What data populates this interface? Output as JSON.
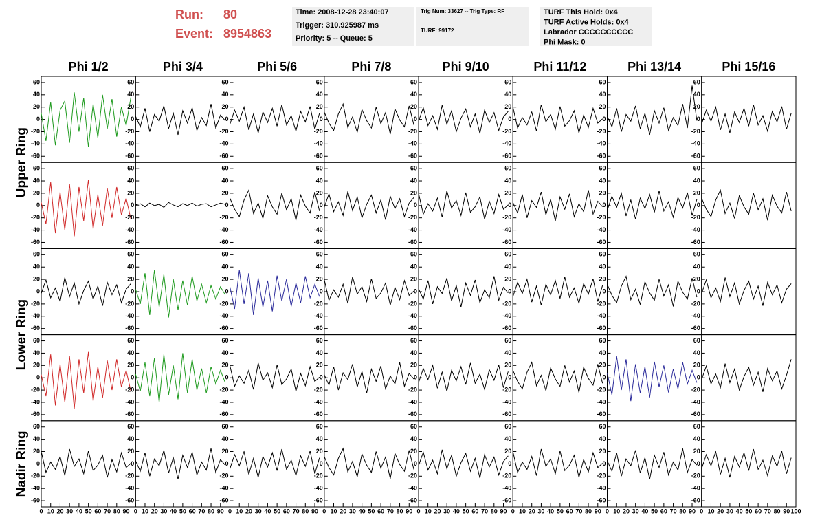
{
  "header": {
    "run_label": "Run:",
    "run": "80",
    "event_label": "Event:",
    "event": "8954863"
  },
  "info_boxes": [
    [
      "Time: 2008-12-28 23:40:07",
      "Trigger: 310.925987 ms",
      "Priority: 5 -- Queue: 5"
    ],
    [
      "Trig Num: 33627 -- Trig Type: RF",
      "TURF: 99172"
    ],
    [
      "TURF This Hold: 0x4",
      "TURF Active Holds: 0x4",
      "Labrador CCCCCCCCCC",
      "Phi Mask: 0"
    ]
  ],
  "columns": [
    "Phi 1/2",
    "Phi 3/4",
    "Phi 5/6",
    "Phi 7/8",
    "Phi 9/10",
    "Phi 11/12",
    "Phi 13/14",
    "Phi 15/16"
  ],
  "ring_labels": [
    "Upper Ring",
    "Lower Ring",
    "Nadir Ring"
  ],
  "axes": {
    "xlim": [
      0,
      100
    ],
    "xticks": [
      0,
      10,
      20,
      30,
      40,
      50,
      60,
      70,
      80,
      90,
      100
    ],
    "ylim": [
      -70,
      70
    ],
    "yticks": [
      -60,
      -40,
      -20,
      0,
      20,
      40,
      60
    ]
  },
  "x": [
    0,
    5,
    10,
    15,
    20,
    25,
    30,
    35,
    40,
    45,
    50,
    55,
    60,
    65,
    70,
    75,
    80,
    85,
    90,
    95
  ],
  "panels": [
    [
      {
        "color": "#1e9a1e",
        "values": [
          10,
          -35,
          28,
          -42,
          15,
          30,
          -38,
          44,
          -20,
          35,
          -45,
          25,
          -30,
          40,
          -15,
          33,
          -28,
          20,
          -10,
          36
        ]
      },
      {
        "color": "#000000",
        "values": [
          5,
          -12,
          18,
          -20,
          8,
          -3,
          22,
          -15,
          10,
          -25,
          14,
          -6,
          19,
          -18,
          3,
          -10,
          25,
          -14,
          7,
          -2
        ]
      },
      {
        "color": "#000000",
        "values": [
          -8,
          15,
          -3,
          20,
          -17,
          9,
          -22,
          12,
          -5,
          18,
          -11,
          24,
          -9,
          6,
          -19,
          13,
          -4,
          21,
          -16,
          10
        ]
      },
      {
        "color": "#000000",
        "values": [
          12,
          -6,
          -18,
          9,
          25,
          -13,
          4,
          -21,
          16,
          -2,
          -14,
          20,
          -7,
          11,
          -24,
          17,
          -1,
          -12,
          22,
          -9
        ]
      },
      {
        "color": "#000000",
        "values": [
          -3,
          19,
          -10,
          6,
          -16,
          23,
          -8,
          14,
          -20,
          2,
          17,
          -12,
          9,
          -23,
          15,
          -5,
          11,
          -18,
          4,
          13
        ]
      },
      {
        "color": "#000000",
        "values": [
          20,
          -14,
          3,
          -9,
          12,
          -19,
          24,
          -4,
          8,
          -16,
          21,
          -11,
          -2,
          14,
          -22,
          7,
          -13,
          18,
          -6,
          1
        ]
      },
      {
        "color": "#000000",
        "values": [
          5,
          -12,
          18,
          -20,
          8,
          -3,
          22,
          -15,
          10,
          -25,
          14,
          -6,
          19,
          -18,
          3,
          -10,
          25,
          -14,
          55,
          -2
        ]
      },
      {
        "color": "#000000",
        "values": [
          -8,
          15,
          -3,
          20,
          -17,
          9,
          -22,
          12,
          -5,
          18,
          -11,
          24,
          -9,
          6,
          -19,
          13,
          -4,
          21,
          -16,
          10
        ]
      }
    ],
    [
      {
        "color": "#d02828",
        "values": [
          5,
          -30,
          38,
          -45,
          22,
          -40,
          35,
          -50,
          30,
          -25,
          42,
          -38,
          18,
          -33,
          28,
          -20,
          30,
          -15,
          12,
          -22
        ]
      },
      {
        "color": "#000000",
        "values": [
          1,
          3,
          -2,
          4,
          0,
          2,
          -3,
          5,
          1,
          -2,
          3,
          0,
          4,
          -1,
          2,
          3,
          -2,
          1,
          4,
          2
        ]
      },
      {
        "color": "#000000",
        "values": [
          12,
          -6,
          -18,
          9,
          25,
          -13,
          4,
          -21,
          16,
          -2,
          -14,
          20,
          -7,
          11,
          -24,
          17,
          -1,
          -12,
          22,
          -9
        ]
      },
      {
        "color": "#000000",
        "values": [
          -3,
          19,
          -10,
          6,
          -16,
          23,
          -8,
          14,
          -20,
          2,
          17,
          -12,
          9,
          -23,
          15,
          -5,
          11,
          -18,
          4,
          13
        ]
      },
      {
        "color": "#000000",
        "values": [
          20,
          -14,
          3,
          -9,
          12,
          -19,
          24,
          -4,
          8,
          -16,
          21,
          -11,
          -2,
          14,
          -22,
          7,
          -13,
          18,
          -6,
          1
        ]
      },
      {
        "color": "#000000",
        "values": [
          5,
          -12,
          18,
          -20,
          8,
          -3,
          22,
          -15,
          10,
          -25,
          14,
          -6,
          19,
          -18,
          3,
          -10,
          25,
          -14,
          7,
          -2
        ]
      },
      {
        "color": "#000000",
        "values": [
          -8,
          15,
          -3,
          20,
          -17,
          9,
          -22,
          12,
          -5,
          18,
          -11,
          24,
          -9,
          6,
          -19,
          13,
          -4,
          21,
          -16,
          10
        ]
      },
      {
        "color": "#000000",
        "values": [
          12,
          -6,
          -18,
          9,
          25,
          -13,
          4,
          -21,
          16,
          -2,
          -14,
          20,
          -7,
          11,
          -24,
          17,
          -1,
          -12,
          22,
          -9
        ]
      }
    ],
    [
      {
        "color": "#000000",
        "values": [
          -3,
          19,
          -10,
          6,
          -16,
          23,
          -8,
          14,
          -20,
          2,
          17,
          -12,
          9,
          -23,
          15,
          -5,
          11,
          -18,
          4,
          13
        ]
      },
      {
        "color": "#1e9a1e",
        "values": [
          4,
          -20,
          30,
          -38,
          35,
          -25,
          28,
          -42,
          20,
          -30,
          18,
          -22,
          25,
          -15,
          12,
          -18,
          10,
          -12,
          8,
          -5
        ]
      },
      {
        "color": "#2a2a9a",
        "values": [
          8,
          -28,
          35,
          -20,
          30,
          -38,
          22,
          -25,
          18,
          -32,
          26,
          -15,
          20,
          -24,
          14,
          -18,
          25,
          -10,
          12,
          -8
        ]
      },
      {
        "color": "#000000",
        "values": [
          20,
          -14,
          3,
          -9,
          12,
          -19,
          24,
          -4,
          8,
          -16,
          21,
          -11,
          -2,
          14,
          -22,
          7,
          -13,
          18,
          -6,
          1
        ]
      },
      {
        "color": "#000000",
        "values": [
          5,
          -12,
          18,
          -20,
          8,
          -3,
          22,
          -15,
          10,
          -25,
          14,
          -6,
          19,
          -18,
          3,
          -10,
          25,
          -14,
          7,
          -2
        ]
      },
      {
        "color": "#000000",
        "values": [
          -8,
          15,
          -3,
          20,
          -17,
          9,
          -22,
          12,
          -5,
          18,
          -11,
          24,
          -9,
          6,
          -19,
          13,
          -4,
          21,
          -16,
          10
        ]
      },
      {
        "color": "#000000",
        "values": [
          12,
          -6,
          -18,
          9,
          25,
          -13,
          4,
          -21,
          16,
          -2,
          -14,
          20,
          -7,
          11,
          -24,
          17,
          -1,
          -12,
          22,
          -9
        ]
      },
      {
        "color": "#000000",
        "values": [
          -3,
          19,
          -10,
          6,
          -16,
          23,
          -8,
          14,
          -20,
          2,
          17,
          -12,
          9,
          -23,
          15,
          -5,
          11,
          -18,
          4,
          13
        ]
      }
    ],
    [
      {
        "color": "#d02828",
        "values": [
          5,
          -30,
          38,
          -45,
          22,
          -40,
          35,
          -50,
          30,
          -25,
          42,
          -38,
          18,
          -33,
          28,
          -20,
          30,
          -15,
          12,
          -22
        ]
      },
      {
        "color": "#1e9a1e",
        "values": [
          6,
          -22,
          25,
          -30,
          32,
          -40,
          38,
          -28,
          20,
          -35,
          40,
          -25,
          30,
          -20,
          15,
          -25,
          18,
          -10,
          12,
          -8
        ]
      },
      {
        "color": "#000000",
        "values": [
          20,
          -14,
          3,
          -9,
          12,
          -19,
          24,
          -4,
          8,
          -16,
          21,
          -11,
          -2,
          14,
          -22,
          7,
          -13,
          18,
          -6,
          1
        ]
      },
      {
        "color": "#000000",
        "values": [
          5,
          -12,
          18,
          -20,
          8,
          -3,
          22,
          -15,
          10,
          -25,
          14,
          -6,
          19,
          -18,
          3,
          -10,
          25,
          -14,
          7,
          -2
        ]
      },
      {
        "color": "#000000",
        "values": [
          -8,
          15,
          -3,
          20,
          -17,
          9,
          -22,
          12,
          -5,
          18,
          -11,
          24,
          -9,
          6,
          -19,
          13,
          -4,
          21,
          -16,
          10
        ]
      },
      {
        "color": "#000000",
        "values": [
          12,
          -6,
          -18,
          9,
          25,
          -13,
          4,
          -21,
          16,
          -2,
          -14,
          20,
          -7,
          11,
          -24,
          17,
          -1,
          -12,
          22,
          -9
        ]
      },
      {
        "color": "#2a2a9a",
        "values": [
          8,
          -28,
          35,
          -20,
          30,
          -38,
          22,
          -25,
          18,
          -32,
          26,
          -15,
          20,
          -24,
          14,
          -18,
          25,
          -10,
          12,
          -8
        ]
      },
      {
        "color": "#000000",
        "values": [
          -3,
          19,
          -10,
          6,
          -16,
          23,
          -8,
          14,
          -20,
          2,
          17,
          -12,
          9,
          -23,
          15,
          -5,
          11,
          -18,
          4,
          30
        ]
      }
    ],
    [
      {
        "color": "#000000",
        "values": [
          20,
          -14,
          3,
          -9,
          12,
          -19,
          24,
          -4,
          8,
          -16,
          21,
          -11,
          -2,
          14,
          -22,
          7,
          -13,
          18,
          -6,
          1
        ]
      },
      {
        "color": "#000000",
        "values": [
          5,
          -12,
          18,
          -20,
          8,
          -3,
          22,
          -15,
          10,
          -25,
          14,
          -6,
          19,
          -18,
          3,
          -10,
          25,
          -14,
          7,
          -2
        ]
      },
      {
        "color": "#000000",
        "values": [
          -8,
          15,
          -3,
          20,
          -17,
          9,
          -22,
          12,
          -5,
          18,
          -11,
          24,
          -9,
          6,
          -19,
          13,
          -4,
          21,
          -16,
          10
        ]
      },
      {
        "color": "#000000",
        "values": [
          12,
          -6,
          -18,
          9,
          25,
          -13,
          4,
          -21,
          16,
          -2,
          -14,
          20,
          -7,
          11,
          -24,
          17,
          -1,
          -12,
          22,
          -9
        ]
      },
      {
        "color": "#000000",
        "values": [
          -3,
          19,
          -10,
          6,
          -16,
          23,
          -8,
          14,
          -20,
          2,
          17,
          -12,
          9,
          -23,
          15,
          -5,
          11,
          -18,
          4,
          13
        ]
      },
      {
        "color": "#000000",
        "values": [
          20,
          -14,
          3,
          -9,
          12,
          -19,
          24,
          -4,
          8,
          -16,
          21,
          -11,
          -2,
          14,
          -22,
          7,
          -13,
          18,
          -6,
          1
        ]
      },
      {
        "color": "#000000",
        "values": [
          5,
          -12,
          18,
          -20,
          8,
          -3,
          22,
          -15,
          10,
          -25,
          14,
          -6,
          19,
          -18,
          3,
          -10,
          25,
          -14,
          7,
          -2
        ]
      },
      {
        "color": "#000000",
        "values": [
          -8,
          15,
          -3,
          20,
          -17,
          9,
          -22,
          12,
          -5,
          18,
          -11,
          24,
          -9,
          6,
          -19,
          13,
          -4,
          21,
          -16,
          10
        ]
      }
    ]
  ]
}
